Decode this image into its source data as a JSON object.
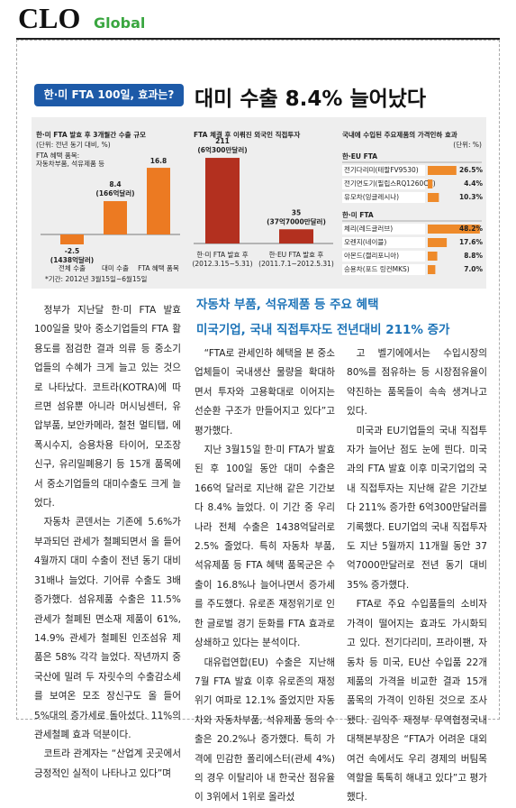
{
  "header": {
    "brand": "CLO",
    "section": "Global"
  },
  "tag": "한·미 FTA 100일, 효과는?",
  "headline": "대미 수출 8.4% 늘어났다",
  "charts": [
    {
      "type": "bar",
      "title": "한·미 FTA 발효 후 3개월간 수출 규모",
      "unit": "(단위: 전년 동기 대비, %)",
      "note_lines": [
        "FTA 혜택 품목:",
        "자동차부품, 석유제품 등"
      ],
      "categories": [
        "전체 수출",
        "대미 수출",
        "FTA 혜택 품목"
      ],
      "values": [
        -2.5,
        8.4,
        16.8
      ],
      "amount_labels": [
        "(1438억달러)",
        "(166억달러)"
      ],
      "footnote": "*기간: 2012년 3월15일~6월15일",
      "color": "#ec7a22"
    },
    {
      "type": "bar",
      "title": "FTA 체결 후 이뤄진 외국인 직접투자",
      "categories": [
        "한·미 FTA 발효 후",
        "한·EU FTA 발효 후"
      ],
      "periods": [
        "(2012.3.15~5.31)",
        "(2011.7.1~2012.5.31)"
      ],
      "values": [
        211,
        35
      ],
      "amount_labels": [
        "(6억300만달러)",
        "(37억7000만달러)"
      ],
      "color": "#b3301f"
    },
    {
      "type": "hbar",
      "title": "국내에 수입된 주요제품의 가격인하 효과",
      "unit": "(단위: %)",
      "color": "#ee8a2a",
      "groups": [
        {
          "name": "한·EU FTA",
          "categories": [
            "전기다리미(테팔FV9530)",
            "전기면도기(필립스RQ1260CC)",
            "유모차(잉글레시나)"
          ],
          "values": [
            26.5,
            4.4,
            10.3
          ],
          "value_labels": [
            "26.5%",
            "4.4%",
            "10.3%"
          ]
        },
        {
          "name": "한·미 FTA",
          "categories": [
            "체리(레드글러브)",
            "오렌지(네이블)",
            "아몬드(캘리포니아)",
            "승용차(포드 링컨MKS)"
          ],
          "values": [
            48.2,
            17.6,
            8.8,
            7.0
          ],
          "value_labels": [
            "48.2%",
            "17.6%",
            "8.8%",
            "7.0%"
          ]
        }
      ]
    }
  ],
  "subheads": [
    "자동차 부품, 석유제품 등 주요 혜택",
    "미국기업, 국내 직접투자도 전년대비 211% 증가"
  ],
  "body": {
    "columns": [
      [
        "정부가 지난달 한·미 FTA 발효 100일을 맞아 중소기업들의 FTA 활용도를 점검한 결과 의류 등 중소기업들의 수혜가 크게 늘고 있는 것으로 나타났다. 코트라(KOTRA)에 따르면 섬유뿐 아니라 머시닝센터, 유압부품, 보안카메라, 철천 멀티탭, 에폭시수지, 승용차용 타이어, 모조장신구, 유리밀폐용기 등 15개 품목에서 중소기업들의 대미수출도 크게 늘었다.",
        "자동차 콘덴서는 기존에 5.6%가 부과되던 관세가 철폐되면서 올 들어 4월까지 대미 수출이 전년 동기 대비 31배나 늘었다. 기어류 수출도 3배 증가했다. 섬유제품 수출은 11.5% 관세가 철폐된 면소재 제품이 61%, 14.9% 관세가 철폐된 인조섬유 제품은 58% 각각 늘었다. 작년까지 중국산에 밀려 두 자릿수의 수출감소세를 보여온 모조 장신구도 올 들어 5%대의 증가세로 돌아섰다. 11%의 관세철폐 효과 덕분이다.",
        "코트라 관계자는 “산업계 곳곳에서 긍정적인 실적이 나타나고 있다”며"
      ],
      [
        "“FTA로 관세인하 혜택을 본 중소업체들이 국내생산 물량을 확대하면서 투자와 고용확대로 이어지는 선순환 구조가 만들어지고 있다”고 평가했다.",
        "지난 3월15일 한·미 FTA가 발효된 후 100일 동안 대미 수출은 166억 달러로 지난해 같은 기간보다 8.4% 늘었다. 이 기간 중 우리나라 전체 수출은 1438억달러로 2.5% 줄었다. 특히 자동차 부품, 석유제품 등 FTA 혜택 품목군은 수출이 16.8%나 늘어나면서 증가세를 주도했다. 유로존 재정위기로 인한 글로벌 경기 둔화를 FTA 효과로 상쇄하고 있다는 분석이다.",
        "대유럽연합(EU) 수출은 지난해 7월 FTA 발효 이후 유로존의 재정위기 여파로 12.1% 줄었지만 자동차와 자동차부품, 석유제품 등의 수출은 20.2%나 증가했다. 특히 가격에 민감한 폴리에스터(관세 4%)의 경우 이탈리아 내 한국산 점유율이 3위에서 1위로 올라섰"
      ],
      [
        "고 벨기에에서는 수입시장의 80%를 점유하는 등 시장점유율이 약진하는 품목들이 속속 생겨나고 있다.",
        "미국과 EU기업들의 국내 직접투자가 늘어난 점도 눈에 띈다. 미국과의 FTA 발효 이후 미국기업의 국내 직접투자는 지난해 같은 기간보다 211% 증가한 6억300만달러를 기록했다. EU기업의 국내 직접투자도 지난 5월까지 11개월 동안 37억7000만달러로 전년 동기 대비 35% 증가했다.",
        "FTA로 주요 수입품들의 소비자 가격이 떨어지는 효과도 가시화되고 있다. 전기다리미, 프라이팬, 자동차 등 미국, EU산 수입품 22개 제품의 가격을 비교한 결과 15개 품목의 가격이 인하된 것으로 조사됐다. 김익주 재정부 무역협정국내대책본부장은 “FTA가 어려운 대외 여건 속에서도 우리 경제의 버팀목 역할을 톡톡히 해내고 있다”고 평가했다."
      ]
    ]
  }
}
